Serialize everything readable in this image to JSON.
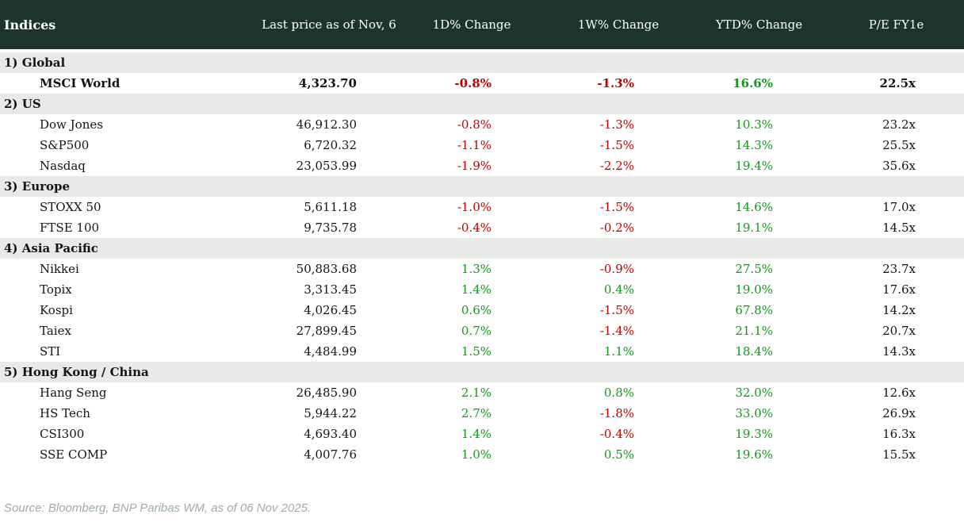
{
  "chart_data": {
    "type": "table",
    "title": "Indices",
    "columns": [
      "Last price as of Nov, 6",
      "1D% Change",
      "1W% Change",
      "YTD% Change",
      "P/E FY1e"
    ],
    "sections": [
      {
        "label": "1) Global",
        "rows": [
          {
            "name": "MSCI World",
            "last_price": "4,323.70",
            "d1": "-0.8%",
            "w1": "-1.3%",
            "ytd": "16.6%",
            "pe": "22.5x",
            "highlight": true
          }
        ]
      },
      {
        "label": "2) US",
        "rows": [
          {
            "name": "Dow Jones",
            "last_price": "46,912.30",
            "d1": "-0.8%",
            "w1": "-1.3%",
            "ytd": "10.3%",
            "pe": "23.2x"
          },
          {
            "name": "S&P500",
            "last_price": "6,720.32",
            "d1": "-1.1%",
            "w1": "-1.5%",
            "ytd": "14.3%",
            "pe": "25.5x"
          },
          {
            "name": "Nasdaq",
            "last_price": "23,053.99",
            "d1": "-1.9%",
            "w1": "-2.2%",
            "ytd": "19.4%",
            "pe": "35.6x"
          }
        ]
      },
      {
        "label": "3) Europe",
        "rows": [
          {
            "name": "STOXX 50",
            "last_price": "5,611.18",
            "d1": "-1.0%",
            "w1": "-1.5%",
            "ytd": "14.6%",
            "pe": "17.0x"
          },
          {
            "name": "FTSE 100",
            "last_price": "9,735.78",
            "d1": "-0.4%",
            "w1": "-0.2%",
            "ytd": "19.1%",
            "pe": "14.5x"
          }
        ]
      },
      {
        "label": "4) Asia Pacific",
        "rows": [
          {
            "name": "Nikkei",
            "last_price": "50,883.68",
            "d1": "1.3%",
            "w1": "-0.9%",
            "ytd": "27.5%",
            "pe": "23.7x"
          },
          {
            "name": "Topix",
            "last_price": "3,313.45",
            "d1": "1.4%",
            "w1": "0.4%",
            "ytd": "19.0%",
            "pe": "17.6x"
          },
          {
            "name": "Kospi",
            "last_price": "4,026.45",
            "d1": "0.6%",
            "w1": "-1.5%",
            "ytd": "67.8%",
            "pe": "14.2x"
          },
          {
            "name": "Taiex",
            "last_price": "27,899.45",
            "d1": "0.7%",
            "w1": "-1.4%",
            "ytd": "21.1%",
            "pe": "20.7x"
          },
          {
            "name": "STI",
            "last_price": "4,484.99",
            "d1": "1.5%",
            "w1": "1.1%",
            "ytd": "18.4%",
            "pe": "14.3x"
          }
        ]
      },
      {
        "label": "5) Hong Kong / China",
        "rows": [
          {
            "name": "Hang Seng",
            "last_price": "26,485.90",
            "d1": "2.1%",
            "w1": "0.8%",
            "ytd": "32.0%",
            "pe": "12.6x"
          },
          {
            "name": "HS Tech",
            "last_price": "5,944.22",
            "d1": "2.7%",
            "w1": "-1.8%",
            "ytd": "33.0%",
            "pe": "26.9x"
          },
          {
            "name": "CSI300",
            "last_price": "4,693.40",
            "d1": "1.4%",
            "w1": "-0.4%",
            "ytd": "19.3%",
            "pe": "16.3x"
          },
          {
            "name": "SSE COMP",
            "last_price": "4,007.76",
            "d1": "1.0%",
            "w1": "0.5%",
            "ytd": "19.6%",
            "pe": "15.5x"
          }
        ]
      }
    ],
    "source_note": "Source: Bloomberg, BNP Paribas WM, as of 06 Nov 2025."
  },
  "colors": {
    "header_bg": "#1D342D",
    "header_text": "#FFFFFF",
    "section_bg": "#E7EAE7",
    "positive": "#0E9C18",
    "negative": "#C00000",
    "text": "#141414",
    "source_text": "#9DABB2"
  }
}
